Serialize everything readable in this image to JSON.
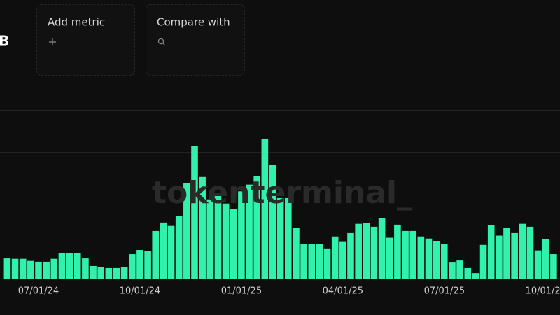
{
  "ui": {
    "partial_label": "B",
    "add_metric": "Add metric",
    "compare_with": "Compare with",
    "watermark": "tokenterminal_"
  },
  "chart_data": {
    "type": "bar",
    "color": "#31f2ad",
    "grid": true,
    "categories": [
      null,
      null,
      null,
      null,
      "07/01/24",
      null,
      null,
      null,
      null,
      null,
      null,
      null,
      null,
      null,
      null,
      null,
      null,
      "10/01/24",
      null,
      null,
      null,
      null,
      null,
      null,
      null,
      null,
      null,
      null,
      null,
      null,
      "01/01/25",
      null,
      null,
      null,
      null,
      null,
      null,
      null,
      null,
      null,
      null,
      null,
      null,
      "04/01/25",
      null,
      null,
      null,
      null,
      null,
      null,
      null,
      null,
      null,
      null,
      null,
      null,
      "07/01/25",
      null,
      null,
      null,
      null,
      null,
      null,
      null,
      null,
      null,
      null,
      null,
      null,
      "10/01/25",
      null
    ],
    "values": [
      0.48,
      0.47,
      0.47,
      0.42,
      0.4,
      0.4,
      0.47,
      0.61,
      0.6,
      0.6,
      0.48,
      0.3,
      0.28,
      0.25,
      0.25,
      0.28,
      0.58,
      0.68,
      0.66,
      1.13,
      1.33,
      1.25,
      1.48,
      2.26,
      3.14,
      2.41,
      1.88,
      2.03,
      1.78,
      1.65,
      2.07,
      2.23,
      2.43,
      3.32,
      2.69,
      1.91,
      1.91,
      1.2,
      0.83,
      0.83,
      0.83,
      0.7,
      1.0,
      0.87,
      1.08,
      1.3,
      1.32,
      1.23,
      1.43,
      0.97,
      1.28,
      1.13,
      1.13,
      1.0,
      0.95,
      0.88,
      0.83,
      0.38,
      0.43,
      0.25,
      0.13,
      0.8,
      1.27,
      1.02,
      1.2,
      1.08,
      1.3,
      1.23,
      0.67,
      0.93,
      0.58
    ],
    "ylim": [
      0,
      4
    ],
    "yticks": [
      0,
      1,
      2,
      3,
      4
    ]
  }
}
